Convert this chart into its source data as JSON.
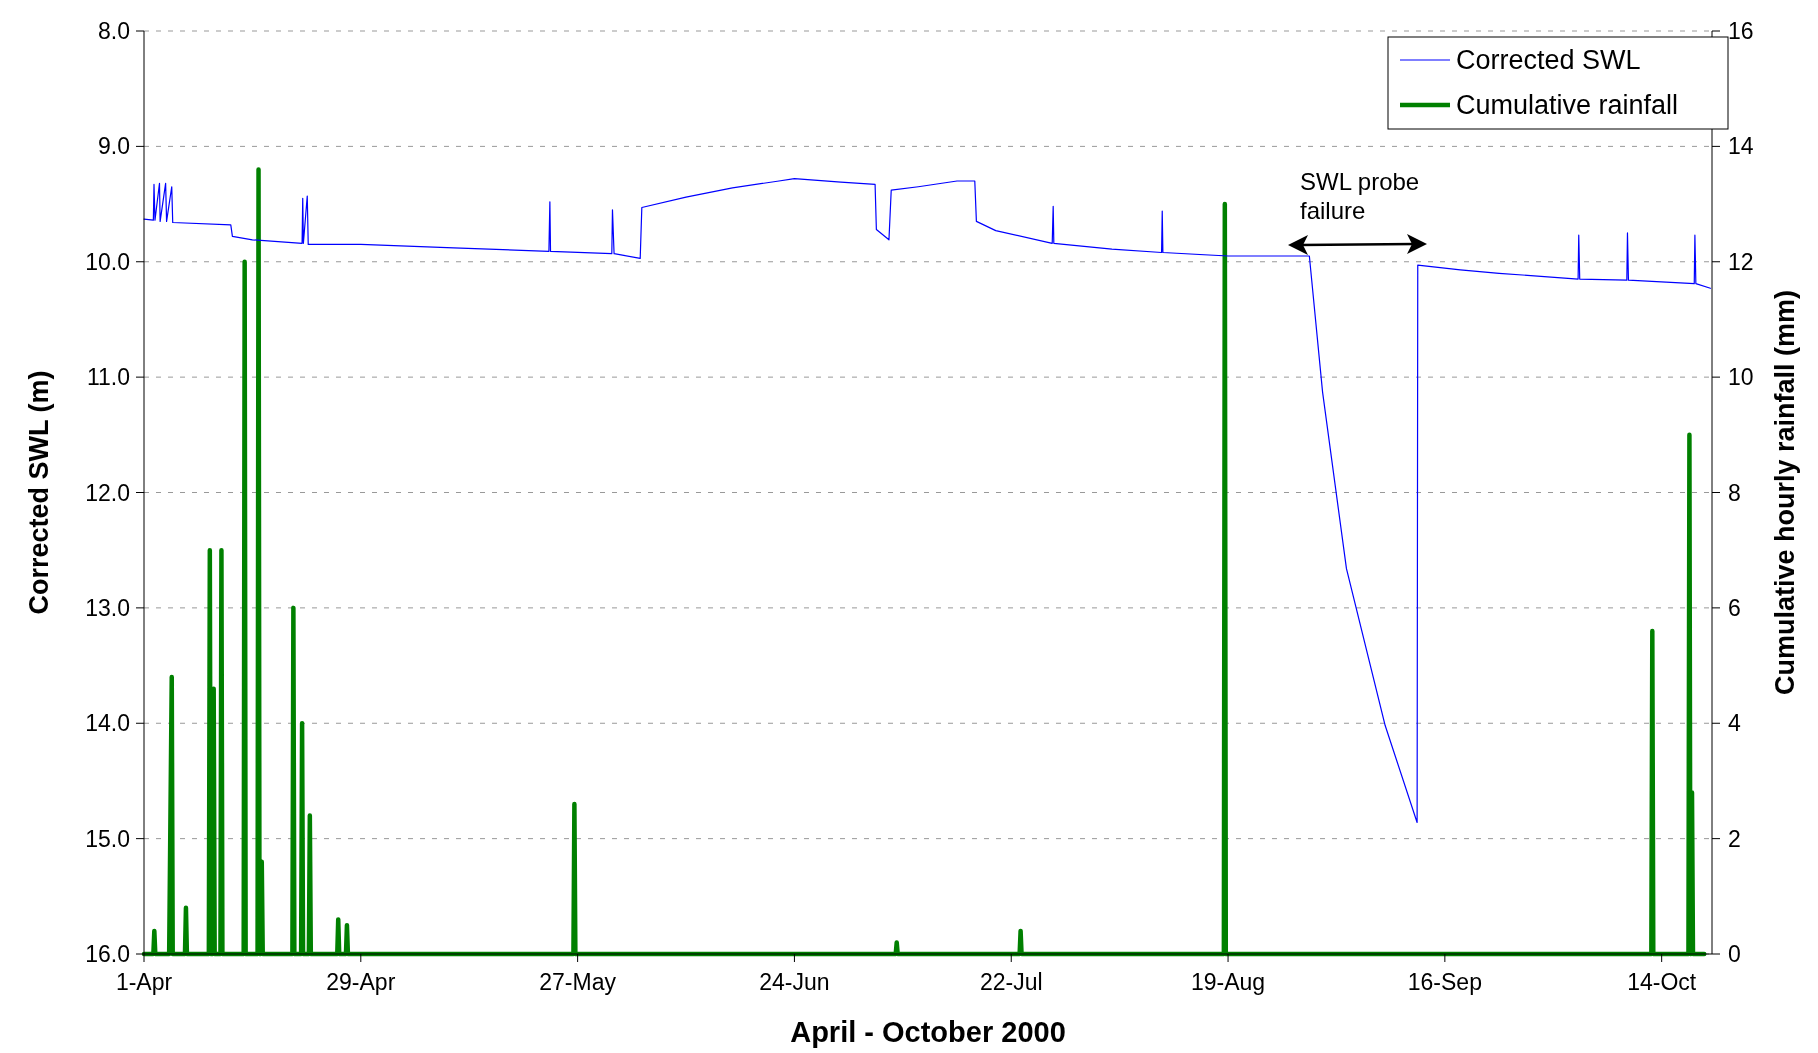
{
  "chart_data": {
    "type": "line",
    "xlabel": "April - October 2000",
    "ylabel": "Corrected SWL (m)",
    "y2label": "Cumulative hourly rainfall (mm)",
    "xlim": [
      "2000-04-01",
      "2000-10-20T12:00"
    ],
    "xticks": [
      {
        "value": "2000-04-01",
        "label": "1-Apr"
      },
      {
        "value": "2000-04-29",
        "label": "29-Apr"
      },
      {
        "value": "2000-05-27",
        "label": "27-May"
      },
      {
        "value": "2000-06-24",
        "label": "24-Jun"
      },
      {
        "value": "2000-07-22",
        "label": "22-Jul"
      },
      {
        "value": "2000-08-19",
        "label": "19-Aug"
      },
      {
        "value": "2000-09-16",
        "label": "16-Sep"
      },
      {
        "value": "2000-10-14",
        "label": "14-Oct"
      }
    ],
    "ylim": [
      16,
      8
    ],
    "yticks": [
      {
        "value": 8,
        "label": "8.0"
      },
      {
        "value": 9,
        "label": "9.0"
      },
      {
        "value": 10,
        "label": "10.0"
      },
      {
        "value": 11,
        "label": "11.0"
      },
      {
        "value": 12,
        "label": "12.0"
      },
      {
        "value": 13,
        "label": "13.0"
      },
      {
        "value": 14,
        "label": "14.0"
      },
      {
        "value": 15,
        "label": "15.0"
      },
      {
        "value": 16,
        "label": "16.0"
      }
    ],
    "y2lim": [
      0,
      16
    ],
    "y2ticks": [
      0,
      2,
      4,
      6,
      8,
      10,
      12,
      14,
      16
    ],
    "grid": "y",
    "legend": "top right",
    "annotations": [
      "SWL probe failure"
    ],
    "series": [
      {
        "name": "Corrected SWL",
        "color": "#0000ff",
        "x": [
          "2000-04-01",
          "2000-04-02T05:00",
          "2000-04-02T07:00",
          "2000-04-02T10:00",
          "2000-04-03T00:00",
          "2000-04-03T02:00",
          "2000-04-03T19:00",
          "2000-04-03T22:00",
          "2000-04-04T14:00",
          "2000-04-04T17:00",
          "2000-04-12T05:00",
          "2000-04-12T10:00",
          "2000-04-15",
          "2000-04-21T10:00",
          "2000-04-21T12:00",
          "2000-04-21T14:00",
          "2000-04-22T02:00",
          "2000-04-22T05:00",
          "2000-04-29",
          "2000-05-11",
          "2000-05-23T07:00",
          "2000-05-23T10:00",
          "2000-05-23T12:00",
          "2000-05-31T10:00",
          "2000-05-31T12:00",
          "2000-05-31T17:00",
          "2000-06-04T02:00",
          "2000-06-04T07:00",
          "2000-06-10",
          "2000-06-16",
          "2000-06-22",
          "2000-06-24",
          "2000-06-30",
          "2000-07-04T10:00",
          "2000-07-04T14:00",
          "2000-07-06T05:00",
          "2000-07-06T12:00",
          "2000-07-10",
          "2000-07-15",
          "2000-07-17T07:00",
          "2000-07-17T12:00",
          "2000-07-20",
          "2000-07-27T07:00",
          "2000-07-27T10:00",
          "2000-07-27T12:00",
          "2000-08-04",
          "2000-08-10T10:00",
          "2000-08-10T12:00",
          "2000-08-10T14:00",
          "2000-08-19",
          "2000-08-29T12:00",
          "2000-08-31T05:00",
          "2000-09-03T07:00",
          "2000-09-08T07:00",
          "2000-09-12T10:00",
          "2000-09-12T12:00",
          "2000-09-18",
          "2000-09-23",
          "2000-10-03T05:00",
          "2000-10-03T07:00",
          "2000-10-03T10:00",
          "2000-10-09T12:00",
          "2000-10-09T14:00",
          "2000-10-09T17:00",
          "2000-10-18T05:00",
          "2000-10-18T07:00",
          "2000-10-18T10:00",
          "2000-10-20T07:00"
        ],
        "values": [
          9.63,
          9.64,
          9.33,
          9.64,
          9.32,
          9.65,
          9.32,
          9.65,
          9.35,
          9.66,
          9.68,
          9.78,
          9.81,
          9.84,
          9.45,
          9.84,
          9.43,
          9.85,
          9.85,
          9.88,
          9.91,
          9.48,
          9.91,
          9.93,
          9.55,
          9.93,
          9.97,
          9.53,
          9.44,
          9.36,
          9.3,
          9.28,
          9.31,
          9.33,
          9.72,
          9.81,
          9.38,
          9.35,
          9.3,
          9.3,
          9.65,
          9.73,
          9.84,
          9.52,
          9.84,
          9.89,
          9.92,
          9.56,
          9.92,
          9.95,
          9.95,
          11.13,
          12.66,
          14.02,
          14.86,
          10.03,
          10.07,
          10.1,
          10.15,
          9.77,
          10.15,
          10.16,
          9.75,
          10.16,
          10.19,
          9.77,
          10.19,
          10.23
        ]
      },
      {
        "name": "Cumulative rainfall",
        "color": "#008000",
        "axis": "y2",
        "x": [
          "2000-04-01",
          "2000-04-02T05:00",
          "2000-04-02T08:00",
          "2000-04-02T11:00",
          "2000-04-04T06:00",
          "2000-04-04T14:00",
          "2000-04-04T17:00",
          "2000-04-06T07:00",
          "2000-04-06T10:00",
          "2000-04-06T13:00",
          "2000-04-09T09:00",
          "2000-04-09T12:00",
          "2000-04-09T15:00",
          "2000-04-09T21:00",
          "2000-04-10T00:00",
          "2000-04-10T03:00",
          "2000-04-10T21:00",
          "2000-04-11T00:00",
          "2000-04-11T03:00",
          "2000-04-13T21:00",
          "2000-04-14T00:00",
          "2000-04-14T03:00",
          "2000-04-15T16:00",
          "2000-04-15T19:00",
          "2000-04-15T22:00",
          "2000-04-16T02:00",
          "2000-04-16T05:00",
          "2000-04-16T08:00",
          "2000-04-20T04:00",
          "2000-04-20T07:00",
          "2000-04-20T10:00",
          "2000-04-21T07:00",
          "2000-04-21T10:00",
          "2000-04-21T13:00",
          "2000-04-22T07:00",
          "2000-04-22T10:00",
          "2000-04-22T13:00",
          "2000-04-25T23:00",
          "2000-04-26T02:00",
          "2000-04-26T05:00",
          "2000-04-27T02:00",
          "2000-04-27T05:00",
          "2000-04-27T08:00",
          "2000-05-26T11:00",
          "2000-05-26T14:00",
          "2000-05-26T17:00",
          "2000-07-07T02:00",
          "2000-07-07T05:00",
          "2000-07-07T08:00",
          "2000-07-23T02:00",
          "2000-07-23T05:00",
          "2000-07-23T08:00",
          "2000-08-18T11:00",
          "2000-08-18T14:00",
          "2000-08-18T17:00",
          "2000-10-12T16:00",
          "2000-10-12T19:00",
          "2000-10-12T22:00",
          "2000-10-17T11:00",
          "2000-10-17T14:00",
          "2000-10-17T17:00",
          "2000-10-17T19:00",
          "2000-10-17T22:00",
          "2000-10-18T01:00",
          "2000-10-19T12:00"
        ],
        "values": [
          0,
          0,
          0.4,
          0,
          0,
          4.8,
          0,
          0,
          0.8,
          0,
          0,
          7,
          0,
          0,
          4.6,
          0,
          0,
          7,
          0,
          0,
          12,
          0,
          0,
          13.6,
          0,
          0,
          1.6,
          0,
          0,
          6,
          0,
          0,
          4,
          0,
          0,
          2.4,
          0,
          0,
          0.6,
          0,
          0,
          0.5,
          0,
          0,
          2.6,
          0,
          0,
          0.2,
          0,
          0,
          0.4,
          0,
          0,
          13,
          0,
          0,
          5.6,
          0,
          0,
          9,
          0,
          0,
          2.8,
          0,
          0
        ]
      }
    ]
  }
}
